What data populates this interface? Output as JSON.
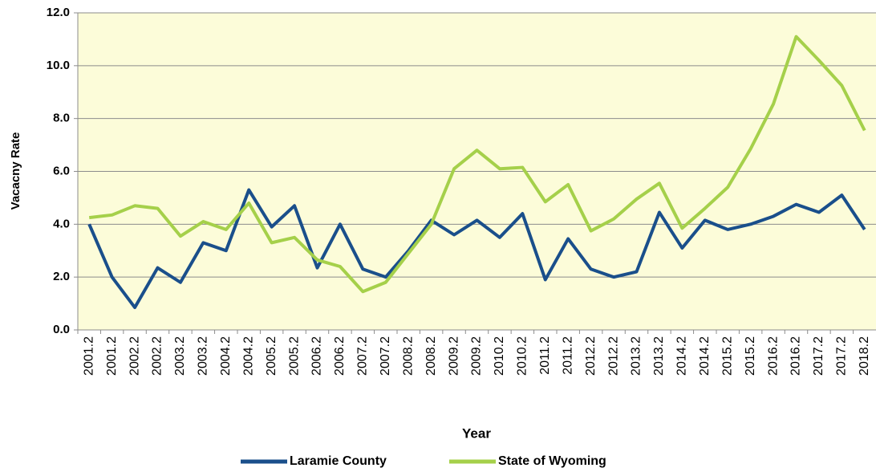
{
  "chart_data": {
    "type": "line",
    "y_label": "Vacacny Rate",
    "x_label": "Year",
    "categories": [
      "2001.2",
      "2001.2",
      "2002.2",
      "2002.2",
      "2003.2",
      "2003.2",
      "2004.2",
      "2004.2",
      "2005.2",
      "2005.2",
      "2006.2",
      "2006.2",
      "2007.2",
      "2007.2",
      "2008.2",
      "2008.2",
      "2009.2",
      "2009.2",
      "2010.2",
      "2010.2",
      "2011.2",
      "2011.2",
      "2012.2",
      "2012.2",
      "2013.2",
      "2013.2",
      "2014.2",
      "2014.2",
      "2015.2",
      "2015.2",
      "2016.2",
      "2016.2",
      "2017.2",
      "2017.2",
      "2018.2"
    ],
    "series": [
      {
        "name": "Laramie County",
        "color": "#1a4f8b",
        "values": [
          4.0,
          2.0,
          0.85,
          2.35,
          1.8,
          3.3,
          3.0,
          5.3,
          3.9,
          4.7,
          2.35,
          4.0,
          2.3,
          2.0,
          3.0,
          4.15,
          3.6,
          4.15,
          3.5,
          4.4,
          1.9,
          3.45,
          2.3,
          2.0,
          2.2,
          4.45,
          3.1,
          4.15,
          3.8,
          4.0,
          4.3,
          4.75,
          4.45,
          5.1,
          3.8
        ]
      },
      {
        "name": "State of Wyoming",
        "color": "#a5d04a",
        "values": [
          4.25,
          4.35,
          4.7,
          4.6,
          3.55,
          4.1,
          3.8,
          4.8,
          3.3,
          3.5,
          2.65,
          2.4,
          1.45,
          1.8,
          2.9,
          4.0,
          6.1,
          6.8,
          6.1,
          6.15,
          4.85,
          5.5,
          3.75,
          4.2,
          4.95,
          5.55,
          3.85,
          4.6,
          5.4,
          6.85,
          8.55,
          11.1,
          10.2,
          9.25,
          7.55
        ]
      }
    ],
    "ylim": [
      0,
      12
    ],
    "yticks": [
      {
        "value": 0,
        "label": "0.0"
      },
      {
        "value": 2,
        "label": "2.0"
      },
      {
        "value": 4,
        "label": "4.0"
      },
      {
        "value": 6,
        "label": "6.0"
      },
      {
        "value": 8,
        "label": "8.0"
      },
      {
        "value": 10,
        "label": "10.0"
      },
      {
        "value": 12,
        "label": "12.0"
      }
    ],
    "grid": true,
    "plot_background": "#fcfcd9",
    "legend": "bottom"
  }
}
